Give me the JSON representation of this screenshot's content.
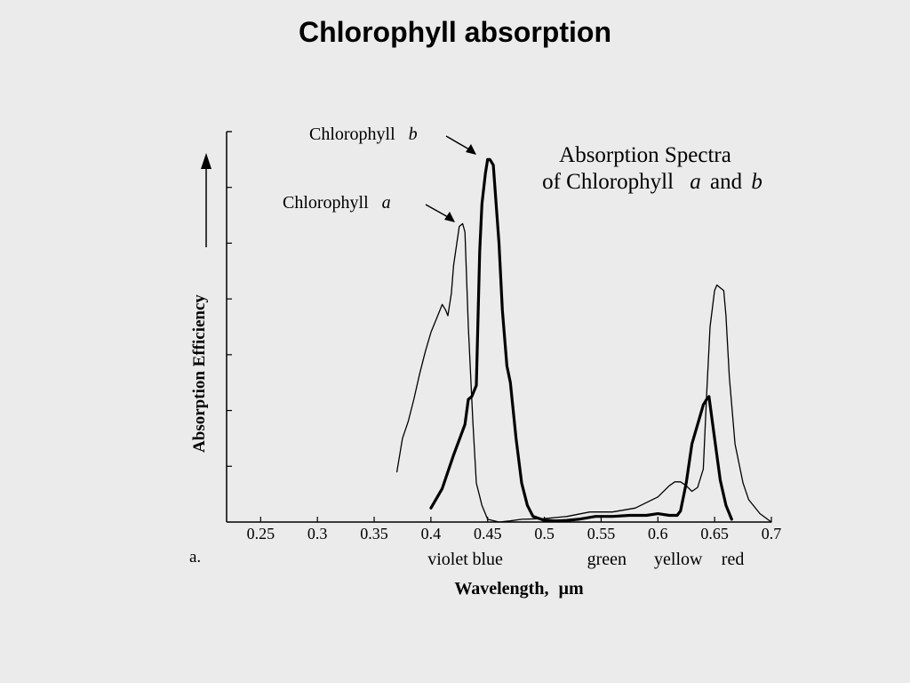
{
  "slide": {
    "title": "Chlorophyll absorption",
    "panel_label": "a."
  },
  "colors": {
    "background": "#ebebeb",
    "ink": "#000000"
  },
  "chart_data": {
    "type": "line",
    "title_line1": "Absorption Spectra",
    "title_line2_prefix": "of Chlorophyll",
    "title_line2_a": "a",
    "title_line2_and": "and",
    "title_line2_b": "b",
    "xlabel": "Wavelength,",
    "xlabel_unit": "µm",
    "ylabel": "Absorption Efficiency",
    "xlim": [
      0.22,
      0.7
    ],
    "ylim": [
      0,
      7
    ],
    "x_ticks": [
      {
        "value": 0.25,
        "label": "0.25"
      },
      {
        "value": 0.3,
        "label": "0.3"
      },
      {
        "value": 0.35,
        "label": "0.35"
      },
      {
        "value": 0.4,
        "label": "0.4"
      },
      {
        "value": 0.45,
        "label": "0.45"
      },
      {
        "value": 0.5,
        "label": "0.5"
      },
      {
        "value": 0.55,
        "label": "0.55"
      },
      {
        "value": 0.6,
        "label": "0.6"
      },
      {
        "value": 0.65,
        "label": "0.65"
      },
      {
        "value": 0.7,
        "label": "0.7"
      }
    ],
    "y_ticks": [
      1,
      2,
      3,
      4,
      5,
      6,
      7
    ],
    "color_bands": [
      {
        "label": "violet",
        "x": 0.415
      },
      {
        "label": "blue",
        "x": 0.45
      },
      {
        "label": "green",
        "x": 0.555
      },
      {
        "label": "yellow",
        "x": 0.618
      },
      {
        "label": "red",
        "x": 0.666
      }
    ],
    "series": [
      {
        "name": "Chlorophyll",
        "name_italic": "a",
        "line_width": "thin",
        "x": [
          0.37,
          0.375,
          0.38,
          0.385,
          0.39,
          0.395,
          0.4,
          0.405,
          0.41,
          0.413,
          0.415,
          0.418,
          0.42,
          0.425,
          0.428,
          0.43,
          0.433,
          0.437,
          0.44,
          0.445,
          0.45,
          0.46,
          0.47,
          0.48,
          0.5,
          0.52,
          0.54,
          0.56,
          0.58,
          0.6,
          0.61,
          0.615,
          0.62,
          0.625,
          0.63,
          0.635,
          0.64,
          0.643,
          0.646,
          0.65,
          0.652,
          0.655,
          0.658,
          0.66,
          0.663,
          0.668,
          0.675,
          0.68,
          0.69,
          0.7
        ],
        "y": [
          0.9,
          1.5,
          1.8,
          2.2,
          2.65,
          3.05,
          3.4,
          3.65,
          3.9,
          3.8,
          3.7,
          4.1,
          4.6,
          5.3,
          5.35,
          5.2,
          3.5,
          1.8,
          0.7,
          0.3,
          0.05,
          0.0,
          0.02,
          0.05,
          0.06,
          0.1,
          0.18,
          0.18,
          0.25,
          0.45,
          0.65,
          0.72,
          0.72,
          0.65,
          0.55,
          0.62,
          0.95,
          2.3,
          3.5,
          4.15,
          4.25,
          4.2,
          4.15,
          3.7,
          2.6,
          1.4,
          0.7,
          0.4,
          0.15,
          0.0
        ]
      },
      {
        "name": "Chlorophyll",
        "name_italic": "b",
        "line_width": "thick",
        "x": [
          0.4,
          0.41,
          0.42,
          0.43,
          0.433,
          0.436,
          0.44,
          0.443,
          0.445,
          0.448,
          0.45,
          0.452,
          0.455,
          0.46,
          0.463,
          0.467,
          0.47,
          0.475,
          0.48,
          0.485,
          0.49,
          0.5,
          0.51,
          0.52,
          0.53,
          0.545,
          0.56,
          0.575,
          0.59,
          0.6,
          0.61,
          0.617,
          0.62,
          0.625,
          0.63,
          0.635,
          0.64,
          0.643,
          0.645,
          0.65,
          0.655,
          0.66,
          0.665
        ],
        "y": [
          0.25,
          0.6,
          1.2,
          1.75,
          2.2,
          2.25,
          2.45,
          4.85,
          5.7,
          6.25,
          6.5,
          6.5,
          6.4,
          5.0,
          3.8,
          2.8,
          2.5,
          1.5,
          0.7,
          0.3,
          0.1,
          0.03,
          0.02,
          0.03,
          0.05,
          0.1,
          0.1,
          0.12,
          0.12,
          0.15,
          0.12,
          0.12,
          0.2,
          0.7,
          1.4,
          1.75,
          2.1,
          2.2,
          2.25,
          1.5,
          0.75,
          0.3,
          0.05
        ]
      }
    ]
  }
}
